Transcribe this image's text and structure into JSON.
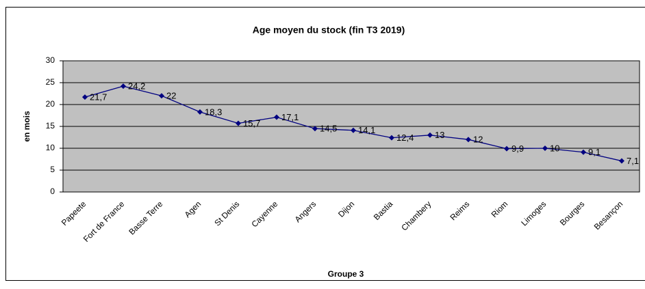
{
  "chart_data": {
    "type": "line",
    "title": "Age moyen du stock (fin T3 2019)",
    "y_label": "en mois",
    "x_label": "Groupe 3",
    "categories": [
      "Papeete",
      "Fort de France",
      "Basse Terre",
      "Agen",
      "St Denis",
      "Cayenne",
      "Angers",
      "Dijon",
      "Bastia",
      "Chambery",
      "Reims",
      "Riom",
      "Limoges",
      "Bourges",
      "Besançon"
    ],
    "values": [
      21.7,
      24.2,
      22,
      18.3,
      15.7,
      17.1,
      14.5,
      14.1,
      12.4,
      13,
      12,
      9.9,
      10,
      9.1,
      7.1
    ],
    "value_labels": [
      "21,7",
      "24,2",
      "22",
      "18,3",
      "15,7",
      "17,1",
      "14,5",
      "14,1",
      "12,4",
      "13",
      "12",
      "9,9",
      "10",
      "9,1",
      "7,1"
    ],
    "color": "#000080",
    "ylim": [
      0,
      30
    ],
    "yticks": [
      0,
      5,
      10,
      15,
      20,
      25,
      30
    ],
    "grid": true
  }
}
